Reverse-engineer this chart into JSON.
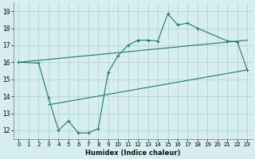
{
  "zigzag_x": [
    0,
    2,
    3,
    4,
    5,
    6,
    7,
    8,
    9,
    10,
    11,
    12,
    13,
    14,
    15,
    16,
    17,
    18,
    21,
    22,
    23
  ],
  "zigzag_y": [
    16.0,
    15.95,
    13.9,
    12.0,
    12.55,
    11.85,
    11.85,
    12.1,
    15.4,
    16.4,
    17.0,
    17.3,
    17.3,
    17.25,
    18.85,
    18.2,
    18.3,
    18.0,
    17.25,
    17.2,
    15.55
  ],
  "upper_line_x": [
    0,
    23
  ],
  "upper_line_y": [
    16.0,
    17.3
  ],
  "lower_line_x": [
    3,
    23
  ],
  "lower_line_y": [
    13.5,
    15.55
  ],
  "color": "#1a7a6e",
  "bg_color": "#d6eef0",
  "grid_color": "#b0ced2",
  "xlabel": "Humidex (Indice chaleur)",
  "xlim": [
    -0.5,
    23.5
  ],
  "ylim": [
    11.5,
    19.5
  ],
  "yticks": [
    12,
    13,
    14,
    15,
    16,
    17,
    18,
    19
  ],
  "xticks": [
    0,
    1,
    2,
    3,
    4,
    5,
    6,
    7,
    8,
    9,
    10,
    11,
    12,
    13,
    14,
    15,
    16,
    17,
    18,
    19,
    20,
    21,
    22,
    23
  ],
  "xtick_labels": [
    "0",
    "1",
    "2",
    "3",
    "4",
    "5",
    "6",
    "7",
    "8",
    "9",
    "10",
    "11",
    "12",
    "13",
    "14",
    "15",
    "16",
    "17",
    "18",
    "19",
    "20",
    "21",
    "22",
    "23"
  ]
}
